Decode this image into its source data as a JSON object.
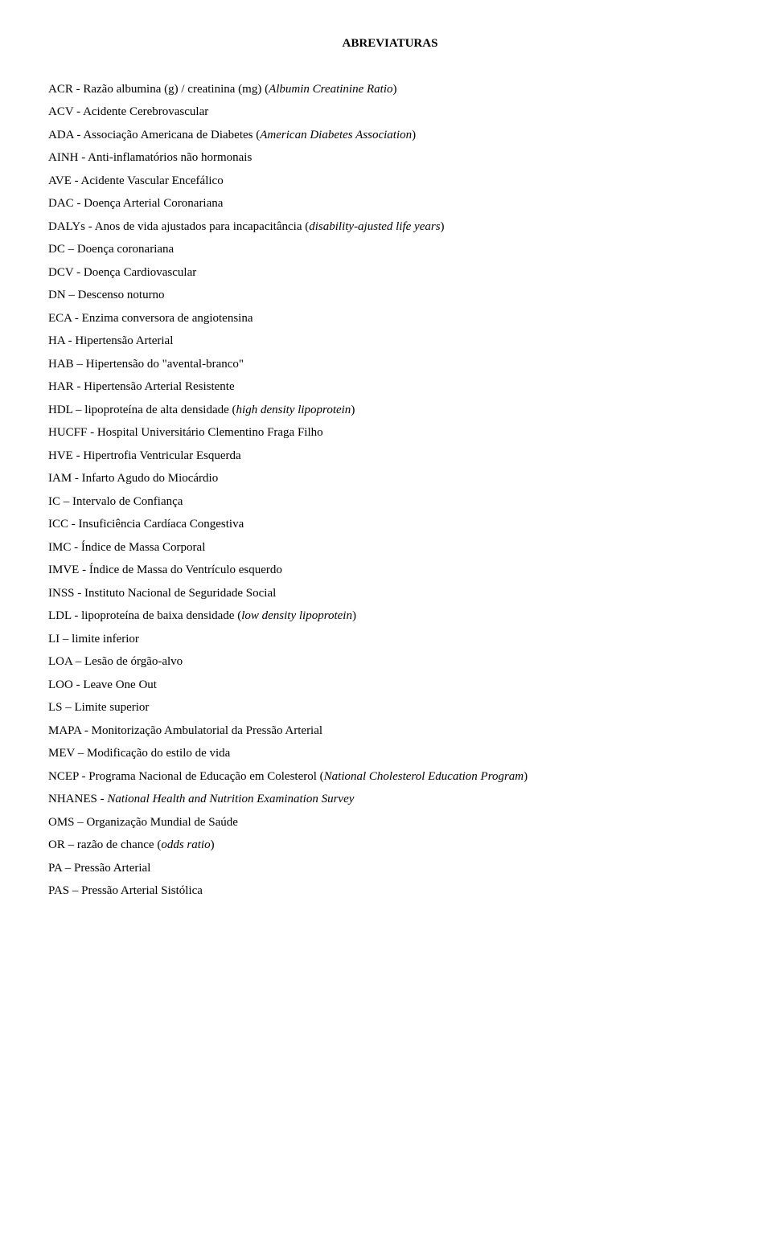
{
  "title": "ABREVIATURAS",
  "entries": [
    {
      "pre": "ACR - Razão albumina (g) / creatinina (mg) (",
      "it": "Albumin Creatinine Ratio",
      "post": ")"
    },
    {
      "pre": "ACV - Acidente Cerebrovascular"
    },
    {
      "pre": "ADA - Associação Americana de Diabetes (",
      "it": "American Diabetes Association",
      "post": ")"
    },
    {
      "pre": "AINH - Anti-inflamatórios não hormonais"
    },
    {
      "pre": "AVE - Acidente Vascular Encefálico"
    },
    {
      "pre": "DAC - Doença Arterial Coronariana"
    },
    {
      "pre": "DALYs - Anos de vida ajustados para incapacitância (",
      "it": "disability-ajusted life years",
      "post": ")"
    },
    {
      "pre": "DC – Doença coronariana"
    },
    {
      "pre": "DCV - Doença Cardiovascular"
    },
    {
      "pre": "DN – Descenso noturno"
    },
    {
      "pre": "ECA - Enzima conversora de angiotensina"
    },
    {
      "pre": "HA - Hipertensão Arterial"
    },
    {
      "pre": "HAB – Hipertensão do \"avental-branco\""
    },
    {
      "pre": "HAR - Hipertensão Arterial Resistente"
    },
    {
      "pre": "HDL – lipoproteína de alta densidade (",
      "it": "high density lipoprotein",
      "post": ")"
    },
    {
      "pre": "HUCFF - Hospital Universitário Clementino Fraga Filho"
    },
    {
      "pre": "HVE - Hipertrofia Ventricular Esquerda"
    },
    {
      "pre": "IAM - Infarto Agudo do Miocárdio"
    },
    {
      "pre": "IC – Intervalo de Confiança"
    },
    {
      "pre": "ICC - Insuficiência Cardíaca Congestiva"
    },
    {
      "pre": "IMC - Índice de Massa Corporal"
    },
    {
      "pre": "IMVE - Índice de Massa do Ventrículo esquerdo"
    },
    {
      "pre": "INSS - Instituto Nacional de Seguridade Social"
    },
    {
      "pre": "LDL - lipoproteína de baixa densidade (",
      "it": "low density lipoprotein",
      "post": ")"
    },
    {
      "pre": "LI – limite inferior"
    },
    {
      "pre": "LOA – Lesão de órgão-alvo"
    },
    {
      "pre": "LOO - Leave One Out"
    },
    {
      "pre": "LS – Limite superior"
    },
    {
      "pre": "MAPA - Monitorização Ambulatorial da Pressão Arterial"
    },
    {
      "pre": "MEV – Modificação do estilo de vida"
    },
    {
      "pre": "NCEP - Programa Nacional de Educação em Colesterol (",
      "it": "National Cholesterol Education Program",
      "post": ")"
    },
    {
      "pre": "NHANES - ",
      "it": "National Health and Nutrition Examination Survey"
    },
    {
      "pre": "OMS – Organização Mundial de Saúde"
    },
    {
      "pre": "OR – razão de chance (",
      "it": "odds ratio",
      "post": ")"
    },
    {
      "pre": "PA – Pressão Arterial"
    },
    {
      "pre": "PAS – Pressão Arterial Sistólica"
    }
  ]
}
